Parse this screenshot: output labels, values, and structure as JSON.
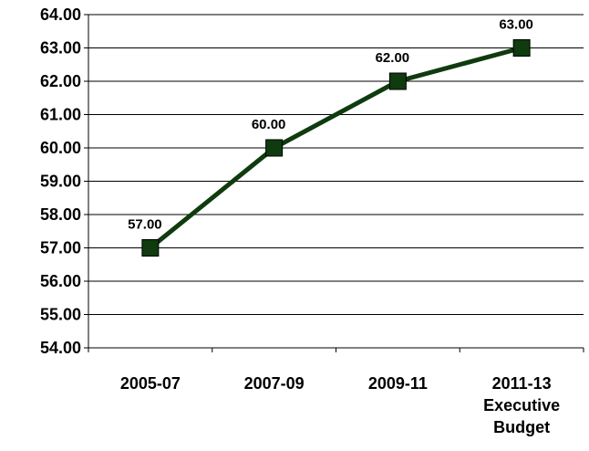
{
  "chart_data": {
    "type": "line",
    "title": "",
    "xlabel": "",
    "ylabel": "",
    "categories": [
      [
        "2005-07"
      ],
      [
        "2007-09"
      ],
      [
        "2009-11"
      ],
      [
        "2011-13",
        "Executive",
        "Budget"
      ]
    ],
    "series": [
      {
        "values": [
          57.0,
          60.0,
          62.0,
          63.0
        ],
        "data_labels": [
          "57.00",
          "60.00",
          "62.00",
          "63.00"
        ],
        "color": "#0f3b0f",
        "marker": "square"
      }
    ],
    "ylim": [
      54.0,
      64.0
    ],
    "y_tick_labels": [
      "54.00",
      "55.00",
      "56.00",
      "57.00",
      "58.00",
      "59.00",
      "60.00",
      "61.00",
      "62.00",
      "63.00",
      "64.00"
    ],
    "grid": true,
    "legend": "none"
  }
}
